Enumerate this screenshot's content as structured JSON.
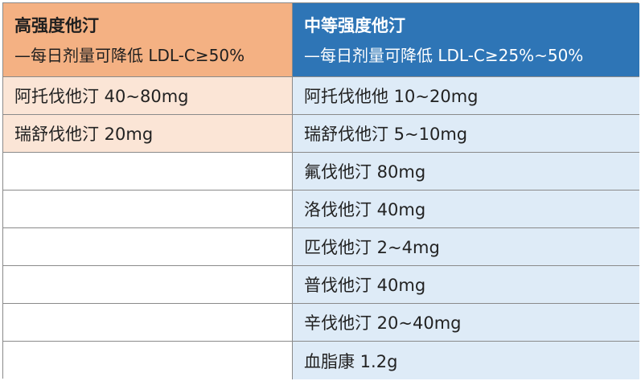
{
  "table": {
    "high": {
      "title": "高强度他汀",
      "subtitle": "—每日剂量可降低 LDL-C≥50%",
      "rows": [
        "阿托伐他汀 40~80mg",
        "瑞舒伐他汀 20mg",
        "",
        "",
        "",
        "",
        "",
        ""
      ]
    },
    "moderate": {
      "title": "中等强度他汀",
      "subtitle": "—每日剂量可降低 LDL-C≥25%~50%",
      "rows": [
        "阿托伐他他 10~20mg",
        "瑞舒伐他汀 5~10mg",
        "氟伐他汀 80mg",
        "洛伐他汀 40mg",
        "匹伐他汀 2~4mg",
        "普伐他汀 40mg",
        "辛伐他汀 20~40mg",
        "血脂康 1.2g"
      ]
    }
  },
  "colors": {
    "high_header": "#f4b183",
    "high_body": "#fbe5d6",
    "moderate_header": "#2e75b6",
    "moderate_body": "#deebf7",
    "border": "#8a8a8a"
  }
}
